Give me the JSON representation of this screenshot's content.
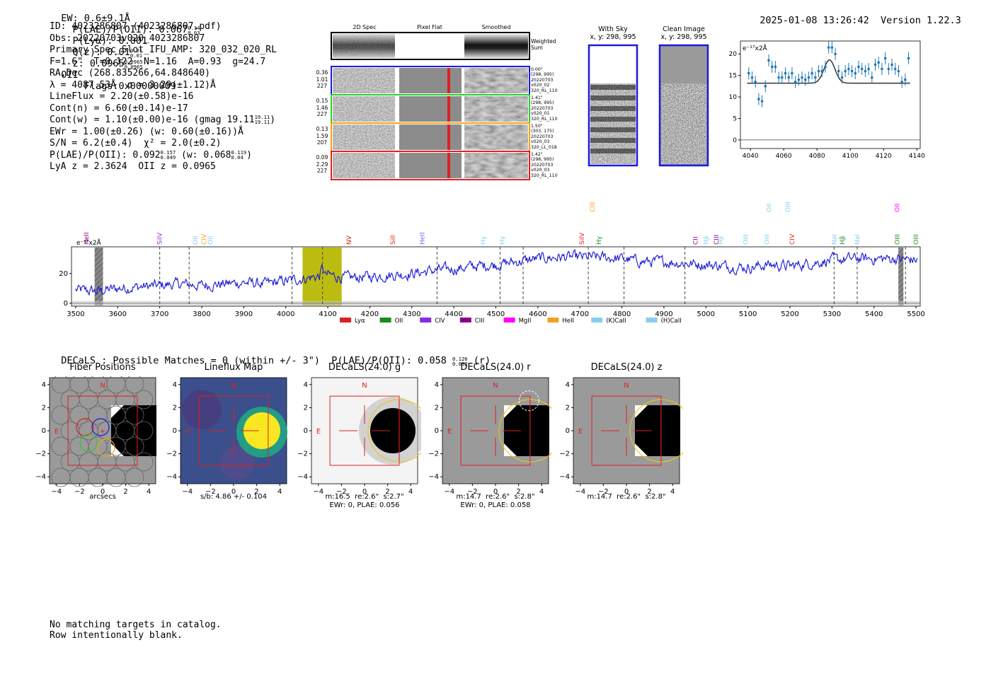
{
  "header": {
    "ew": "EW: 0.6±9.1Å",
    "plae_label": "P(LAE)/P(OII): 0.067",
    "plae_hi": "0.14",
    "plae_lo": "0.03",
    "plya": "P(Lyα): 0.001",
    "qz_label": "Q(z): 0.01",
    "qz_hi": "0.01",
    "qz_lo": "0.01",
    "z_label": "z: 0.0965",
    "z_hi": "0.0965",
    "z_lo": "0.0965",
    "z_line": "OII",
    "flags": "Flags:0x00000009",
    "datetime": "2025-01-08 13:26:42",
    "version": "Version 1.22.3"
  },
  "info": {
    "id": "ID: 4023286807 (4023286807.pdf)",
    "obs": "Obs: 20220703v020_4023286807",
    "slot": "Primary Spec_Slot_IFU_AMP: 320_032_020_RL",
    "fwhm": "F=1.6\"  T=0.122  N=1.16  A=0.93  g=24.7",
    "radec": "RA,Dec (268.835266,64.848640)",
    "lambda": "λ = 4087.53Å  σ = 3.29(±1.12)Å",
    "lineflux": "LineFlux = 2.20(±0.58)e-16",
    "contn": "Cont(n) = 6.60(±0.14)e-17",
    "contw": "Cont(w) = 1.10(±0.00)e-16 (gmag 19.11",
    "contw_hi": "19.11",
    "contw_lo": "19.11",
    "contw_end": ")",
    "ewr": "EWr = 1.00(±0.26) (w: 0.60(±0.16))Å",
    "sn": "S/N = 6.2(±0.4)  χ² = 2.0(±0.2)",
    "plae": "P(LAE)/P(OII): 0.092",
    "plae_hi": "0.157",
    "plae_lo": "0.049",
    "plae_w": "(w: 0.068",
    "plae_w_hi": "0.119",
    "plae_w_lo": "0.04",
    "plae_w_end": ")",
    "lyaz": "LyA z = 2.3624  OII z = 0.0965"
  },
  "spec2d": {
    "col_titles": [
      "2D Spec",
      "Pixel Flat",
      "Smoothed"
    ],
    "weighted_label": "Weighted Sum",
    "rows": [
      {
        "left": [
          "0.36",
          "1.01",
          "227"
        ],
        "right": [
          "0.00\"",
          "(298, 995)",
          "20220703",
          "v020_02",
          "320_RL_110"
        ],
        "color": "#1a1adf"
      },
      {
        "left": [
          "0.15",
          "1.46",
          "227"
        ],
        "right": [
          "1.41\"",
          "(298, 995)",
          "20220703",
          "v020_01",
          "320_RL_110"
        ],
        "color": "#2ecc2e"
      },
      {
        "left": [
          "0.13",
          "1.59",
          "207"
        ],
        "right": [
          "1.50\"",
          "(303, 175)",
          "20220703",
          "v020_03",
          "320_LL_018"
        ],
        "color": "#f2a21a"
      },
      {
        "left": [
          "0.09",
          "2.29",
          "227"
        ],
        "right": [
          "1.42\"",
          "(298, 995)",
          "20220703",
          "v020_03",
          "320_RL_110"
        ],
        "color": "#e02020"
      }
    ]
  },
  "cutouts": {
    "sky_title": "With Sky",
    "sky_xy": "x, y: 298, 995",
    "clean_title": "Clean Image",
    "clean_xy": "x, y: 298, 995"
  },
  "chart_data": [
    {
      "type": "scatter",
      "title": "",
      "ylabel": "e⁻¹⁷x2Å",
      "xlim": [
        4034,
        4142
      ],
      "ylim": [
        -2,
        23
      ],
      "xticks": [
        4040,
        4060,
        4080,
        4100,
        4120,
        4140
      ],
      "yticks": [
        0,
        5,
        10,
        15,
        20
      ],
      "x": [
        4039,
        4041,
        4043,
        4045,
        4047,
        4049,
        4051,
        4053,
        4055,
        4057,
        4059,
        4061,
        4063,
        4065,
        4067,
        4069,
        4071,
        4073,
        4075,
        4077,
        4079,
        4081,
        4083,
        4085,
        4087,
        4089,
        4091,
        4093,
        4095,
        4097,
        4099,
        4101,
        4103,
        4105,
        4107,
        4109,
        4111,
        4113,
        4115,
        4117,
        4119,
        4121,
        4123,
        4125,
        4127,
        4129,
        4131,
        4133,
        4135
      ],
      "y": [
        15.5,
        14.5,
        13.5,
        9.5,
        9.0,
        12.5,
        18.5,
        17.0,
        17.0,
        14.5,
        14.5,
        15.5,
        14.5,
        15.5,
        13.5,
        14.0,
        14.5,
        14.0,
        14.5,
        15.5,
        14.5,
        16.0,
        16.0,
        17.0,
        21.5,
        21.5,
        20.0,
        16.0,
        14.5,
        16.0,
        16.5,
        16.0,
        15.5,
        17.0,
        16.5,
        16.0,
        16.5,
        14.5,
        17.5,
        18.0,
        16.5,
        19.0,
        16.5,
        17.5,
        16.5,
        16.0,
        13.5,
        14.0,
        19.0
      ],
      "model": {
        "continuum": 13.2,
        "amplitude": 5.4,
        "center": 4087.5,
        "sigma": 3.29
      }
    },
    {
      "type": "line",
      "title": "",
      "ylabel": "e⁻¹⁷x2Å",
      "xlim": [
        3490,
        5510
      ],
      "ylim": [
        -2,
        38
      ],
      "xticks": [
        3500,
        3600,
        3700,
        3800,
        3900,
        4000,
        4100,
        4200,
        4300,
        4400,
        4500,
        4600,
        4700,
        4800,
        4900,
        5000,
        5100,
        5200,
        5300,
        5400,
        5500
      ],
      "yticks": [
        0,
        20
      ],
      "series": [
        {
          "name": "spectrum",
          "anchors_x": [
            3500,
            3550,
            3600,
            3650,
            3700,
            3750,
            3800,
            3850,
            3900,
            3950,
            4000,
            4050,
            4100,
            4150,
            4200,
            4250,
            4300,
            4350,
            4400,
            4450,
            4500,
            4550,
            4600,
            4650,
            4700,
            4750,
            4800,
            4850,
            4900,
            4950,
            5000,
            5050,
            5100,
            5150,
            5200,
            5250,
            5300,
            5350,
            5400,
            5450,
            5500
          ],
          "anchors_y": [
            9,
            8,
            10,
            11,
            12,
            13,
            12,
            13,
            14,
            13,
            15,
            17,
            19,
            17,
            18,
            19,
            20,
            22,
            23,
            25,
            26,
            28,
            30,
            31,
            31,
            31,
            30,
            28,
            28,
            27,
            26,
            25,
            24,
            26,
            25,
            27,
            29,
            30,
            30,
            30,
            29
          ]
        }
      ],
      "emission_band": [
        4040,
        4133
      ],
      "peak_line": 4087.5,
      "sky_bands": [
        [
          3545,
          3565
        ],
        [
          5458,
          5470
        ]
      ],
      "dashed_lines": [
        3700,
        3770,
        4015,
        4087.5,
        4360,
        4510,
        4565,
        4720,
        4805,
        4950,
        5305,
        5360,
        5475
      ],
      "line_labels": [
        {
          "name": "HeII",
          "x": 3525,
          "color": "#8b008b",
          "level": 3
        },
        {
          "name": "SiIV",
          "x": 3700,
          "color": "#9932cc",
          "level": 2
        },
        {
          "name": "OII",
          "x": 3785,
          "color": "#87ceeb",
          "level": 2
        },
        {
          "name": "CIV",
          "x": 3805,
          "color": "#f2a21a",
          "level": 2
        },
        {
          "name": "OII",
          "x": 3820,
          "color": "#87ceeb",
          "level": 2
        },
        {
          "name": "NV",
          "x": 4150,
          "color": "#e02020",
          "level": 2
        },
        {
          "name": "SiII",
          "x": 4255,
          "color": "#e02020",
          "level": 2
        },
        {
          "name": "HeII",
          "x": 4325,
          "color": "#8b5cf6",
          "level": 2
        },
        {
          "name": "Hγ",
          "x": 4470,
          "color": "#87ceeb",
          "level": 1
        },
        {
          "name": "Hγ",
          "x": 4515,
          "color": "#87ceeb",
          "level": 1
        },
        {
          "name": "SiIV",
          "x": 4705,
          "color": "#e02020",
          "level": 2
        },
        {
          "name": "CIII",
          "x": 4730,
          "color": "#f2a21a",
          "level": 4
        },
        {
          "name": "Hγ",
          "x": 4745,
          "color": "#228b22",
          "level": 1
        },
        {
          "name": "CII",
          "x": 4975,
          "color": "#8b008b",
          "level": 1
        },
        {
          "name": "Hβ",
          "x": 5000,
          "color": "#87ceeb",
          "level": 1
        },
        {
          "name": "CIII",
          "x": 5025,
          "color": "#8b008b",
          "level": 1
        },
        {
          "name": "Hβ",
          "x": 5035,
          "color": "#87ceeb",
          "level": 1
        },
        {
          "name": "OIII",
          "x": 5095,
          "color": "#87ceeb",
          "level": 1
        },
        {
          "name": "OIII",
          "x": 5145,
          "color": "#87ceeb",
          "level": 1
        },
        {
          "name": "OII",
          "x": 5150,
          "color": "#87ceeb",
          "level": 4
        },
        {
          "name": "OIII",
          "x": 5195,
          "color": "#87ceeb",
          "level": 4
        },
        {
          "name": "CIV",
          "x": 5205,
          "color": "#e02020",
          "level": 1
        },
        {
          "name": "NaI",
          "x": 5305,
          "color": "#87ceeb",
          "level": 1
        },
        {
          "name": "Hβ",
          "x": 5325,
          "color": "#228b22",
          "level": 1
        },
        {
          "name": "NaI",
          "x": 5360,
          "color": "#87ceeb",
          "level": 1
        },
        {
          "name": "OIII",
          "x": 5455,
          "color": "#228b22",
          "level": 1
        },
        {
          "name": "OII",
          "x": 5455,
          "color": "#ff00ff",
          "level": 4
        },
        {
          "name": "OIII",
          "x": 5500,
          "color": "#228b22",
          "level": 1
        }
      ],
      "legend": [
        {
          "name": "Lyα",
          "color": "#e02020"
        },
        {
          "name": "OII",
          "color": "#1a8c1a"
        },
        {
          "name": "CIV",
          "color": "#8a2be2"
        },
        {
          "name": "CIII",
          "color": "#8b008b"
        },
        {
          "name": "MgII",
          "color": "#ff00ff"
        },
        {
          "name": "HeII",
          "color": "#f2a21a"
        },
        {
          "name": "(K)CaII",
          "color": "#87ceeb"
        },
        {
          "name": "(H)CaII",
          "color": "#87ceeb"
        }
      ]
    }
  ],
  "decals": {
    "headline": "DECaLS : Possible Matches = 0 (within +/- 3\")  P(LAE)/P(OII): 0.058",
    "hl_hi": "0.126",
    "hl_lo": "0.032",
    "hl_band": "(r)",
    "axis_ticks": [
      "−4",
      "−2",
      "0",
      "2",
      "4"
    ],
    "panels": [
      {
        "title": "Fiber Positions",
        "caption": [
          "arcsecs"
        ],
        "style": "fiber"
      },
      {
        "title": "Lineflux Map",
        "caption": [
          "s/b: 4.86 +/- 0.104"
        ],
        "style": "flux"
      },
      {
        "title": "DECaLS(24.0) g",
        "caption": [
          "m:16.5  re:2.6\"  s:2.7\"",
          "EWr: 0, PLAE: 0.056"
        ],
        "style": "g"
      },
      {
        "title": "DECaLS(24.0) r",
        "caption": [
          "m:14.7  re:2.6\"  s:2.8\"",
          "EWr: 0, PLAE: 0.058"
        ],
        "style": "r"
      },
      {
        "title": "DECaLS(24.0) z",
        "caption": [
          "m:14.7  re:2.6\"  s:2.8\""
        ],
        "style": "z"
      }
    ],
    "north_label": "N",
    "east_label": "E"
  },
  "footer": {
    "line1": "No matching targets in catalog.",
    "line2": "Row intentionally blank."
  }
}
